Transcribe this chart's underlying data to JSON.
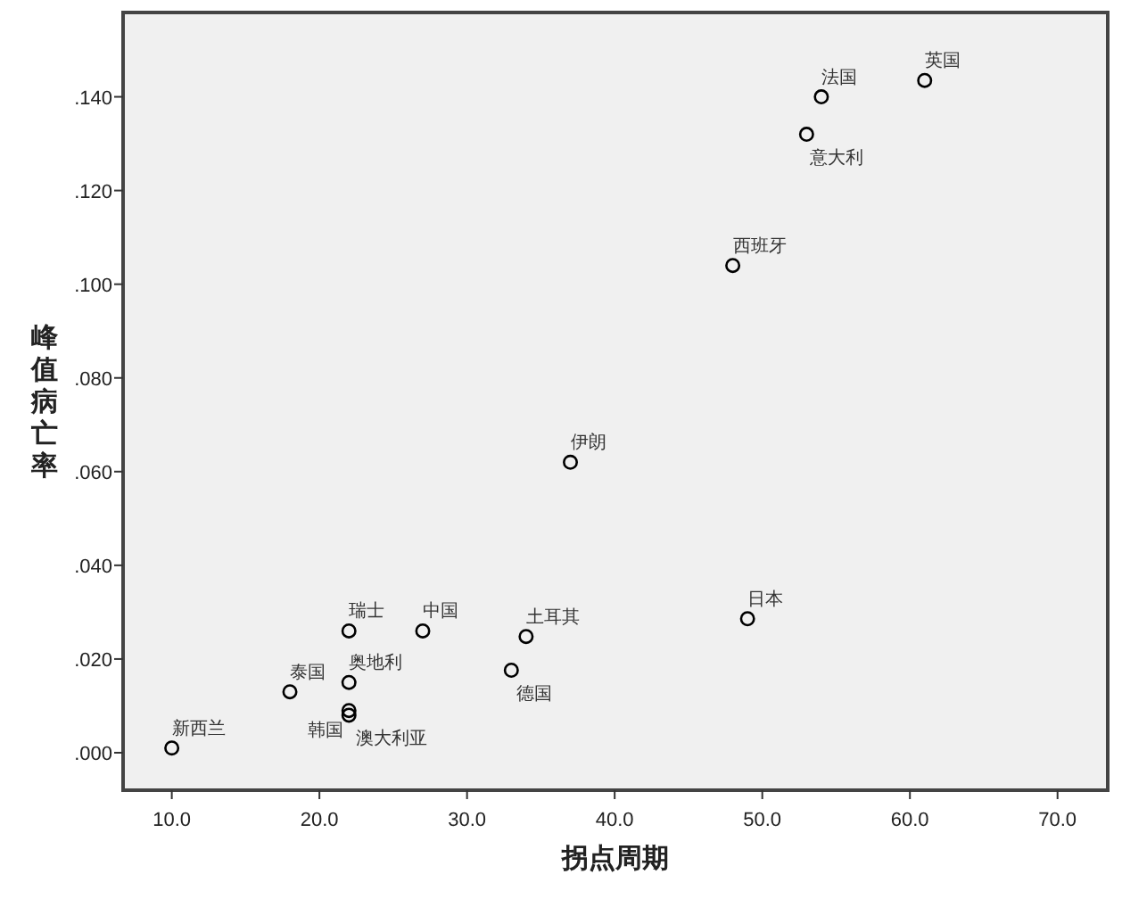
{
  "chart_data": {
    "type": "scatter",
    "xlabel": "拐点周期",
    "ylabel": "峰值病亡率",
    "x": [
      10,
      18,
      22,
      22,
      22,
      22,
      27,
      33,
      34,
      37,
      49,
      48,
      53,
      54,
      61
    ],
    "values": [
      0.001,
      0.013,
      0.026,
      0.015,
      0.009,
      0.008,
      0.026,
      0.0176,
      0.0248,
      0.062,
      0.0286,
      0.104,
      0.132,
      0.14,
      0.1435
    ],
    "color": "#000000",
    "marker": "circle",
    "xlim": [
      6.7,
      73.4
    ],
    "ylim": [
      -0.008,
      0.158
    ],
    "xticks": [
      {
        "value": 10,
        "label": "10.0"
      },
      {
        "value": 20,
        "label": "20.0"
      },
      {
        "value": 30,
        "label": "30.0"
      },
      {
        "value": 40,
        "label": "40.0"
      },
      {
        "value": 50,
        "label": "50.0"
      },
      {
        "value": 60,
        "label": "60.0"
      },
      {
        "value": 70,
        "label": "70.0"
      }
    ],
    "yticks": [
      {
        "value": 0,
        "label": ".000"
      },
      {
        "value": 0.02,
        "label": ".020"
      },
      {
        "value": 0.04,
        "label": ".040"
      },
      {
        "value": 0.06,
        "label": ".060"
      },
      {
        "value": 0.08,
        "label": ".080"
      },
      {
        "value": 0.1,
        "label": ".100"
      },
      {
        "value": 0.12,
        "label": ".120"
      },
      {
        "value": 0.14,
        "label": ".140"
      }
    ],
    "annotations": [
      {
        "text": "新西兰",
        "x": 10,
        "y": 0.001
      },
      {
        "text": "泰国",
        "x": 18,
        "y": 0.013
      },
      {
        "text": "瑞士",
        "x": 22,
        "y": 0.026
      },
      {
        "text": "奥地利",
        "x": 22,
        "y": 0.015
      },
      {
        "text": "韩国",
        "x": 22,
        "y": 0.009
      },
      {
        "text": "澳大利亚",
        "x": 22,
        "y": 0.008
      },
      {
        "text": "中国",
        "x": 27,
        "y": 0.026
      },
      {
        "text": "德国",
        "x": 33,
        "y": 0.0176
      },
      {
        "text": "土耳其",
        "x": 34,
        "y": 0.0248
      },
      {
        "text": "伊朗",
        "x": 37,
        "y": 0.062
      },
      {
        "text": "日本",
        "x": 49,
        "y": 0.0286
      },
      {
        "text": "西班牙",
        "x": 48,
        "y": 0.104
      },
      {
        "text": "意大利",
        "x": 53,
        "y": 0.132
      },
      {
        "text": "法国",
        "x": 54,
        "y": 0.14
      },
      {
        "text": "英国",
        "x": 61,
        "y": 0.1435
      }
    ]
  }
}
